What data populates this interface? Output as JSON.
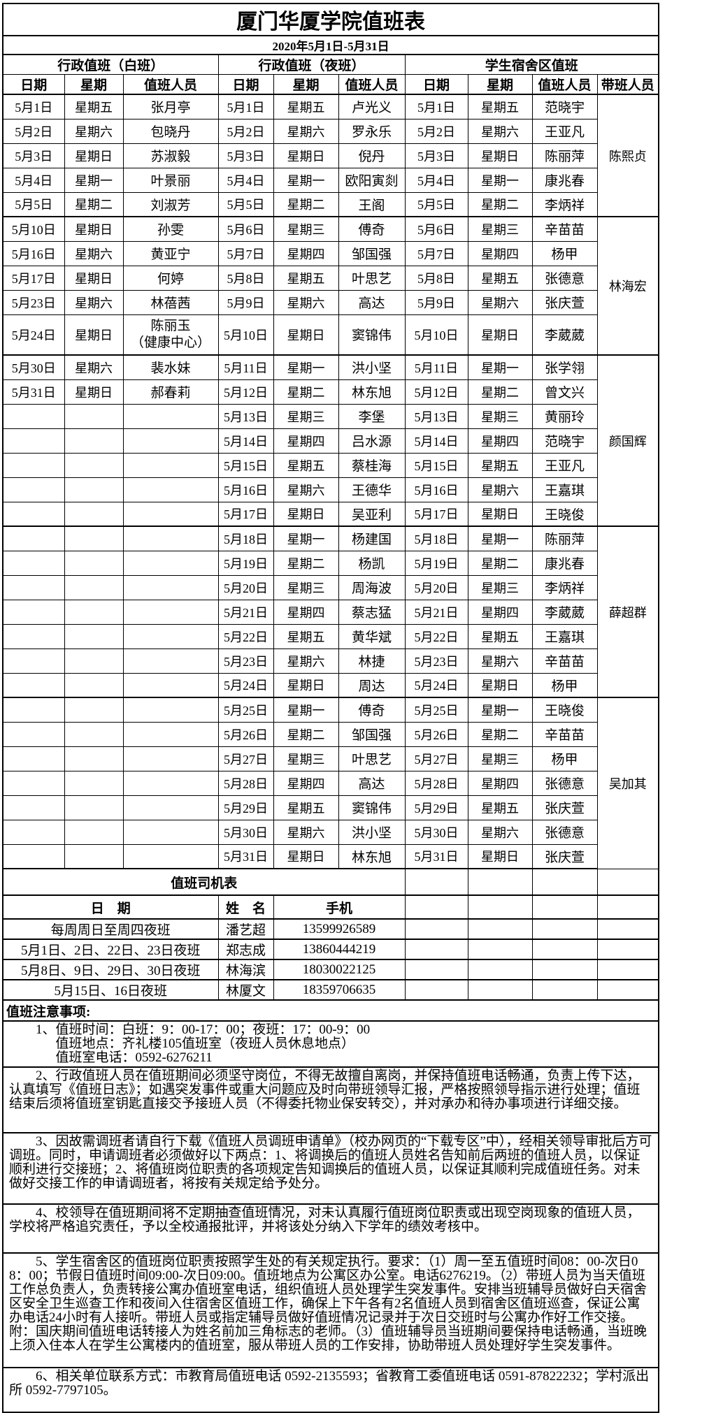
{
  "title": "厦门华厦学院值班表",
  "date_range": "2020年5月1日-5月31日",
  "sections": [
    "行政值班（白班）",
    "行政值班（夜班）",
    "学生宿舍区值班"
  ],
  "columns": {
    "date": "日期",
    "weekday": "星期",
    "person": "值班人员",
    "leader": "带班人员"
  },
  "roster": {
    "rows": [
      {
        "w": [
          "5月1日",
          "星期五",
          "张月亭"
        ],
        "n": [
          "5月1日",
          "星期五",
          "卢光义"
        ],
        "d": [
          "5月1日",
          "星期五",
          "范晓宇"
        ],
        "leader": "陈熙贞",
        "span": 5
      },
      {
        "w": [
          "5月2日",
          "星期六",
          "包晓丹"
        ],
        "n": [
          "5月2日",
          "星期六",
          "罗永乐"
        ],
        "d": [
          "5月2日",
          "星期六",
          "王亚凡"
        ]
      },
      {
        "w": [
          "5月3日",
          "星期日",
          "苏淑毅"
        ],
        "n": [
          "5月3日",
          "星期日",
          "倪丹"
        ],
        "d": [
          "5月3日",
          "星期日",
          "陈丽萍"
        ]
      },
      {
        "w": [
          "5月4日",
          "星期一",
          "叶景丽"
        ],
        "n": [
          "5月4日",
          "星期一",
          "欧阳寅剡"
        ],
        "d": [
          "5月4日",
          "星期一",
          "康兆春"
        ]
      },
      {
        "w": [
          "5月5日",
          "星期二",
          "刘淑芳"
        ],
        "n": [
          "5月5日",
          "星期二",
          "王阁"
        ],
        "d": [
          "5月5日",
          "星期二",
          "李炳祥"
        ],
        "end": true
      },
      {
        "w": [
          "5月10日",
          "星期日",
          "孙雯"
        ],
        "n": [
          "5月6日",
          "星期三",
          "傅奇"
        ],
        "d": [
          "5月6日",
          "星期三",
          "辛苗苗"
        ],
        "leader": "林海宏",
        "span": 5
      },
      {
        "w": [
          "5月16日",
          "星期六",
          "黄亚宁"
        ],
        "n": [
          "5月7日",
          "星期四",
          "邹国强"
        ],
        "d": [
          "5月7日",
          "星期四",
          "杨甲"
        ]
      },
      {
        "w": [
          "5月17日",
          "星期日",
          "何婷"
        ],
        "n": [
          "5月8日",
          "星期五",
          "叶思艺"
        ],
        "d": [
          "5月8日",
          "星期五",
          "张德意"
        ]
      },
      {
        "w": [
          "5月23日",
          "星期六",
          "林蓓茜"
        ],
        "n": [
          "5月9日",
          "星期六",
          "高达"
        ],
        "d": [
          "5月9日",
          "星期六",
          "张庆萱"
        ]
      },
      {
        "w": [
          "5月24日",
          "星期日",
          "陈丽玉\n（健康中心）"
        ],
        "n": [
          "5月10日",
          "星期日",
          "窦锦伟"
        ],
        "d": [
          "5月10日",
          "星期日",
          "李葳葳"
        ],
        "tall": true,
        "end": true
      },
      {
        "w": [
          "5月30日",
          "星期六",
          "裴水妹"
        ],
        "n": [
          "5月11日",
          "星期一",
          "洪小坚"
        ],
        "d": [
          "5月11日",
          "星期一",
          "张学翎"
        ],
        "leader": "颜国辉",
        "span": 7
      },
      {
        "w": [
          "5月31日",
          "星期日",
          "郝春莉"
        ],
        "n": [
          "5月12日",
          "星期二",
          "林东旭"
        ],
        "d": [
          "5月12日",
          "星期二",
          "曾文兴"
        ]
      },
      {
        "w": [
          "",
          "",
          ""
        ],
        "n": [
          "5月13日",
          "星期三",
          "李堡"
        ],
        "d": [
          "5月13日",
          "星期三",
          "黄丽玲"
        ]
      },
      {
        "w": [
          "",
          "",
          ""
        ],
        "n": [
          "5月14日",
          "星期四",
          "吕水源"
        ],
        "d": [
          "5月14日",
          "星期四",
          "范晓宇"
        ]
      },
      {
        "w": [
          "",
          "",
          ""
        ],
        "n": [
          "5月15日",
          "星期五",
          "蔡桂海"
        ],
        "d": [
          "5月15日",
          "星期五",
          "王亚凡"
        ]
      },
      {
        "w": [
          "",
          "",
          ""
        ],
        "n": [
          "5月16日",
          "星期六",
          "王德华"
        ],
        "d": [
          "5月16日",
          "星期六",
          "王嘉琪"
        ]
      },
      {
        "w": [
          "",
          "",
          ""
        ],
        "n": [
          "5月17日",
          "星期日",
          "吴亚利"
        ],
        "d": [
          "5月17日",
          "星期日",
          "王晓俊"
        ],
        "end": true
      },
      {
        "w": [
          "",
          "",
          ""
        ],
        "n": [
          "5月18日",
          "星期一",
          "杨建国"
        ],
        "d": [
          "5月18日",
          "星期一",
          "陈丽萍"
        ],
        "leader": "薛超群",
        "span": 7
      },
      {
        "w": [
          "",
          "",
          ""
        ],
        "n": [
          "5月19日",
          "星期二",
          "杨凯"
        ],
        "d": [
          "5月19日",
          "星期二",
          "康兆春"
        ]
      },
      {
        "w": [
          "",
          "",
          ""
        ],
        "n": [
          "5月20日",
          "星期三",
          "周海波"
        ],
        "d": [
          "5月20日",
          "星期三",
          "李炳祥"
        ]
      },
      {
        "w": [
          "",
          "",
          ""
        ],
        "n": [
          "5月21日",
          "星期四",
          "蔡志猛"
        ],
        "d": [
          "5月21日",
          "星期四",
          "李葳葳"
        ]
      },
      {
        "w": [
          "",
          "",
          ""
        ],
        "n": [
          "5月22日",
          "星期五",
          "黄华斌"
        ],
        "d": [
          "5月22日",
          "星期五",
          "王嘉琪"
        ]
      },
      {
        "w": [
          "",
          "",
          ""
        ],
        "n": [
          "5月23日",
          "星期六",
          "林捷"
        ],
        "d": [
          "5月23日",
          "星期六",
          "辛苗苗"
        ]
      },
      {
        "w": [
          "",
          "",
          ""
        ],
        "n": [
          "5月24日",
          "星期日",
          "周达"
        ],
        "d": [
          "5月24日",
          "星期日",
          "杨甲"
        ],
        "end": true
      },
      {
        "w": [
          "",
          "",
          ""
        ],
        "n": [
          "5月25日",
          "星期一",
          "傅奇"
        ],
        "d": [
          "5月25日",
          "星期一",
          "王晓俊"
        ],
        "leader": "吴加其",
        "span": 7
      },
      {
        "w": [
          "",
          "",
          ""
        ],
        "n": [
          "5月26日",
          "星期二",
          "邹国强"
        ],
        "d": [
          "5月26日",
          "星期二",
          "辛苗苗"
        ]
      },
      {
        "w": [
          "",
          "",
          ""
        ],
        "n": [
          "5月27日",
          "星期三",
          "叶思艺"
        ],
        "d": [
          "5月27日",
          "星期三",
          "杨甲"
        ]
      },
      {
        "w": [
          "",
          "",
          ""
        ],
        "n": [
          "5月28日",
          "星期四",
          "高达"
        ],
        "d": [
          "5月28日",
          "星期四",
          "张德意"
        ]
      },
      {
        "w": [
          "",
          "",
          ""
        ],
        "n": [
          "5月29日",
          "星期五",
          "窦锦伟"
        ],
        "d": [
          "5月29日",
          "星期五",
          "张庆萱"
        ]
      },
      {
        "w": [
          "",
          "",
          ""
        ],
        "n": [
          "5月30日",
          "星期六",
          "洪小坚"
        ],
        "d": [
          "5月30日",
          "星期六",
          "张德意"
        ]
      },
      {
        "w": [
          "",
          "",
          ""
        ],
        "n": [
          "5月31日",
          "星期日",
          "林东旭"
        ],
        "d": [
          "5月31日",
          "星期日",
          "张庆萱"
        ],
        "end": true
      }
    ]
  },
  "driver_table": {
    "title": "值班司机表",
    "headers": {
      "date": "日　期",
      "name": "姓　名",
      "phone": "手机"
    },
    "rows": [
      [
        "每周周日至周四夜班",
        "潘艺超",
        "13599926589"
      ],
      [
        "5月1日、2日、22日、23日夜班",
        "郑志成",
        "13860444219"
      ],
      [
        "5月8日、9日、29日、30日夜班",
        "林海滨",
        "18030022125"
      ],
      [
        "5月15日、16日夜班",
        "林厦文",
        "18359706635"
      ]
    ]
  },
  "notes": {
    "title": "值班注意事项:",
    "items": [
      {
        "cls": "nh1",
        "lines": [
          "1、值班时间：白班：9：00-17：00；夜班：17：00-9：00",
          "值班地点：齐礼楼105值班室（夜班人员休息地点）",
          "值班室电话：0592-6276211"
        ]
      },
      {
        "cls": "nh2",
        "text": "2、行政值班人员在值班期间必须坚守岗位，不得无故擅自离岗，并保持值班电话畅通，负责上传下达，认真填写《值班日志》；如遇突发事件或重大问题应及时向带班领导汇报，严格按照领导指示进行处理；值班结束后须将值班室钥匙直接交予接班人员（不得委托物业保安转交），并对承办和待办事项进行详细交接。"
      },
      {
        "cls": "nh3",
        "text": "3、因故需调班者请自行下载《值班人员调班申请单》（校办网页的“下载专区”中），经相关领导审批后方可调班。同时，申请调班者必须做好以下两点：1、将调换后的值班人员姓名告知前后两班的值班人员，以保证顺利进行交接班；2、将值班岗位职责的各项规定告知调换后的值班人员，以保证其顺利完成值班任务。对未做好交接工作的申请调班者，将按有关规定给予处分。"
      },
      {
        "cls": "nh4",
        "text": "4、校领导在值班期间将不定期抽查值班情况，对未认真履行值班岗位职责或出现空岗现象的值班人员，学校将严格追究责任，予以全校通报批评，并将该处分纳入下学年的绩效考核中。"
      },
      {
        "cls": "nh5",
        "text": "5、学生宿舍区的值班岗位职责按照学生处的有关规定执行。要求：（1）周一至五值班时间08：00-次日08：00；节假日值班时间09:00-次日09:00。值班地点为公寓区办公室。电话6276219。（2）带班人员为当天值班工作总负责人，负责转接公寓办值班室电话，组织值班人员处理学生突发事件。安排当班辅导员做好白天宿舍区安全卫生巡查工作和夜间入住宿舍区值班工作，确保上下午各有2名值班人员到宿舍区值班巡查，保证公寓办电话24小时有人接听。带班人员或指定辅导员做好值班情况记录并于次日交班时与公寓办作好工作交接。附：国庆期间值班电话转接人为姓名前加三角标志的老师。（3）值班辅导员当班期间要保持电话畅通，当班晚上须入住本人在学生公寓楼内的值班室，服从带班人员的工作安排，协助带班人员处理好学生突发事件。"
      },
      {
        "cls": "nh6",
        "text": "6、相关单位联系方式：市教育局值班电话 0592-2135593；省教育工委值班电话 0591-87822232；学村派出所 0592-7797105。"
      }
    ]
  }
}
